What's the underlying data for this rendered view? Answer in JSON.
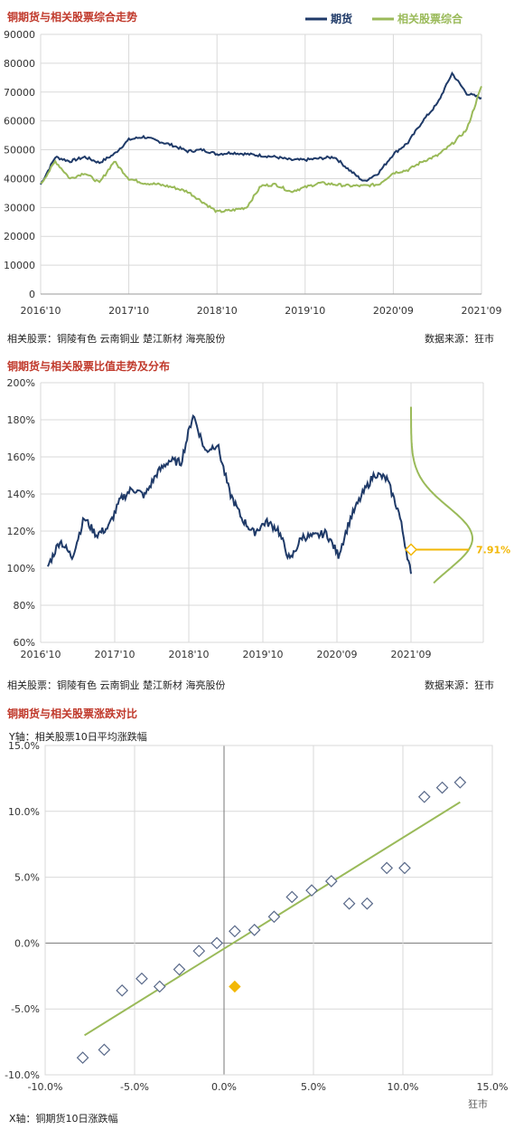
{
  "panel1": {
    "title": "铜期货与相关股票综合走势",
    "footnote_left": "相关股票：铜陵有色  云南铜业  楚江新材  海亮股份",
    "footnote_right": "数据来源：狂市"
  },
  "panel2": {
    "title": "铜期货与相关股票比值走势及分布",
    "footnote_left": "相关股票：铜陵有色  云南铜业  楚江新材  海亮股份",
    "footnote_right": "数据来源：狂市"
  },
  "panel3": {
    "title": "铜期货与相关股票涨跌对比",
    "y_caption": "Y轴：相关股票10日平均涨跌幅",
    "x_caption": "X轴：铜期货10日涨跌幅"
  },
  "watermark": "狂市",
  "colors": {
    "navy": "#1f3a68",
    "green": "#9aba59",
    "gold": "#f2b705",
    "grid": "#d9d9d9",
    "title_red": "#c0392b"
  },
  "chart_data": [
    {
      "type": "line",
      "title": "铜期货与相关股票综合走势",
      "ylim": [
        0,
        90000
      ],
      "yticks": [
        "0",
        "10000",
        "20000",
        "30000",
        "40000",
        "50000",
        "60000",
        "70000",
        "80000",
        "90000"
      ],
      "xticks": [
        "2016'10",
        "2017'10",
        "2018'10",
        "2019'10",
        "2020'09",
        "2021'09"
      ],
      "x": [
        "2016'10",
        "2016'12",
        "2017'02",
        "2017'04",
        "2017'06",
        "2017'08",
        "2017'10",
        "2017'12",
        "2018'02",
        "2018'04",
        "2018'06",
        "2018'08",
        "2018'10",
        "2018'12",
        "2019'02",
        "2019'04",
        "2019'06",
        "2019'08",
        "2019'10",
        "2019'12",
        "2020'02",
        "2020'04",
        "2020'06",
        "2020'08",
        "2020'09",
        "2020'11",
        "2021'01",
        "2021'03",
        "2021'05",
        "2021'07",
        "2021'09"
      ],
      "series": [
        {
          "name": "期货",
          "values": [
            38000,
            47500,
            46000,
            47500,
            45500,
            48500,
            53500,
            54500,
            53000,
            51500,
            49500,
            50000,
            48500,
            49000,
            48500,
            48000,
            47500,
            46500,
            46500,
            47000,
            47500,
            43000,
            39000,
            42000,
            48500,
            52500,
            60000,
            66000,
            76500,
            69500,
            68000
          ]
        },
        {
          "name": "相关股票综合",
          "values": [
            38000,
            46000,
            40000,
            42000,
            38500,
            46000,
            40000,
            38500,
            38000,
            37000,
            35500,
            32000,
            28500,
            29000,
            30000,
            37500,
            38000,
            35500,
            37000,
            38500,
            38000,
            37500,
            37500,
            38000,
            42000,
            43000,
            46000,
            48000,
            52000,
            57000,
            72000
          ]
        }
      ]
    },
    {
      "type": "line",
      "title": "铜期货与相关股票比值走势及分布",
      "ylim": [
        60,
        200
      ],
      "yticks": [
        "60%",
        "80%",
        "100%",
        "120%",
        "140%",
        "160%",
        "180%",
        "200%"
      ],
      "xticks": [
        "2016'10",
        "2017'10",
        "2018'10",
        "2019'10",
        "2020'09",
        "2021'09"
      ],
      "x": [
        "2016'10",
        "2016'12",
        "2017'02",
        "2017'04",
        "2017'06",
        "2017'08",
        "2017'10",
        "2017'12",
        "2018'02",
        "2018'04",
        "2018'06",
        "2018'08",
        "2018'10",
        "2018'12",
        "2019'02",
        "2019'04",
        "2019'06",
        "2019'08",
        "2019'10",
        "2019'12",
        "2020'02",
        "2020'04",
        "2020'06",
        "2020'08",
        "2020'09",
        "2020'11",
        "2021'01",
        "2021'03",
        "2021'05",
        "2021'07",
        "2021'09"
      ],
      "series": [
        {
          "name": "比值",
          "values": [
            101,
            115,
            106,
            127,
            118,
            122,
            137,
            143,
            139,
            151,
            158,
            157,
            183,
            163,
            167,
            141,
            127,
            119,
            125,
            121,
            104,
            117,
            117,
            119,
            107,
            127,
            140,
            151,
            148,
            130,
            97
          ]
        }
      ],
      "distribution_annotation": "7.91%",
      "current_ratio": 110
    },
    {
      "type": "scatter",
      "title": "铜期货与相关股票涨跌对比",
      "xlim": [
        -10,
        15
      ],
      "ylim": [
        -10,
        15
      ],
      "xticks": [
        "-10.0%",
        "-5.0%",
        "0.0%",
        "5.0%",
        "10.0%",
        "15.0%"
      ],
      "yticks": [
        "-10.0%",
        "-5.0%",
        "0.0%",
        "5.0%",
        "10.0%",
        "15.0%"
      ],
      "xlabel": "X轴：铜期货10日涨跌幅",
      "ylabel": "Y轴：相关股票10日平均涨跌幅",
      "points": [
        [
          -7.9,
          -8.7
        ],
        [
          -6.7,
          -8.1
        ],
        [
          -5.7,
          -3.6
        ],
        [
          -4.6,
          -2.7
        ],
        [
          -3.6,
          -3.3
        ],
        [
          -2.5,
          -2.0
        ],
        [
          -1.4,
          -0.6
        ],
        [
          -0.4,
          0.0
        ],
        [
          0.6,
          0.9
        ],
        [
          1.7,
          1.0
        ],
        [
          2.8,
          2.0
        ],
        [
          3.8,
          3.5
        ],
        [
          4.9,
          4.0
        ],
        [
          6.0,
          4.7
        ],
        [
          7.0,
          3.0
        ],
        [
          8.0,
          3.0
        ],
        [
          9.1,
          5.7
        ],
        [
          10.1,
          5.7
        ],
        [
          11.2,
          11.1
        ],
        [
          12.2,
          11.8
        ],
        [
          13.2,
          12.2
        ]
      ],
      "highlight_point": [
        0.6,
        -3.3
      ],
      "trendline": [
        [
          -7.8,
          -7.0
        ],
        [
          13.2,
          10.7
        ]
      ]
    }
  ]
}
